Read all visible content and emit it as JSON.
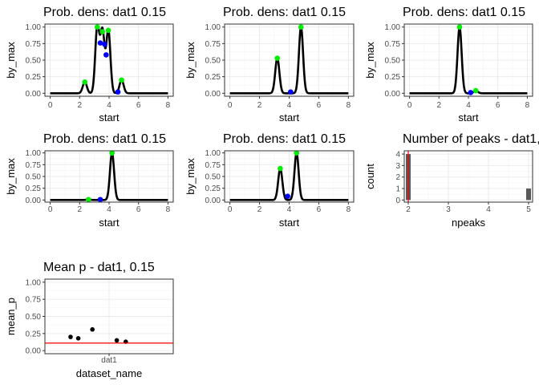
{
  "colors": {
    "panel_border": "#333333",
    "grid_major": "#ebebeb",
    "grid_minor": "#f4f4f4",
    "curve": "#000000",
    "peak_green": "#00ee00",
    "valley_blue": "#0000ff",
    "ref_line": "#ff0000",
    "bar": "#595959"
  },
  "chart_data": [
    {
      "type": "line",
      "title": "Prob. dens: dat1 0.15",
      "xlabel": "start",
      "ylabel": "by_max",
      "xlim": [
        0,
        8
      ],
      "ylim": [
        0,
        1
      ],
      "xticks": [
        "0",
        "2",
        "4",
        "6",
        "8"
      ],
      "yticks": [
        "0.00",
        "0.25",
        "0.50",
        "0.75",
        "1.00"
      ],
      "grid": true,
      "peaks": [
        {
          "x": 2.35,
          "y": 0.17
        },
        {
          "x": 3.2,
          "y": 1.0
        },
        {
          "x": 3.55,
          "y": 0.93
        },
        {
          "x": 3.95,
          "y": 0.95
        },
        {
          "x": 4.85,
          "y": 0.2
        }
      ],
      "valleys": [
        {
          "x": 3.4,
          "y": 0.76
        },
        {
          "x": 3.7,
          "y": 0.74
        },
        {
          "x": 3.8,
          "y": 0.58
        },
        {
          "x": 4.6,
          "y": 0.02
        }
      ]
    },
    {
      "type": "line",
      "title": "Prob. dens: dat1 0.15",
      "xlabel": "start",
      "ylabel": "by_max",
      "xlim": [
        0,
        8
      ],
      "ylim": [
        0,
        1
      ],
      "xticks": [
        "0",
        "2",
        "4",
        "6",
        "8"
      ],
      "yticks": [
        "0.00",
        "0.25",
        "0.50",
        "0.75",
        "1.00"
      ],
      "grid": true,
      "peaks": [
        {
          "x": 3.2,
          "y": 0.53
        },
        {
          "x": 4.8,
          "y": 1.0
        }
      ],
      "valleys": [
        {
          "x": 4.1,
          "y": 0.02
        }
      ]
    },
    {
      "type": "line",
      "title": "Prob. dens: dat1 0.15",
      "xlabel": "start",
      "ylabel": "by_max",
      "xlim": [
        0,
        8
      ],
      "ylim": [
        0,
        1
      ],
      "xticks": [
        "0",
        "2",
        "4",
        "6",
        "8"
      ],
      "yticks": [
        "0.00",
        "0.25",
        "0.50",
        "0.75",
        "1.00"
      ],
      "grid": true,
      "peaks": [
        {
          "x": 3.4,
          "y": 1.0
        },
        {
          "x": 4.5,
          "y": 0.04
        }
      ],
      "valleys": [
        {
          "x": 4.15,
          "y": 0.01
        }
      ]
    },
    {
      "type": "line",
      "title": "Prob. dens: dat1 0.15",
      "xlabel": "start",
      "ylabel": "by_max",
      "xlim": [
        0,
        8
      ],
      "ylim": [
        0,
        1
      ],
      "xticks": [
        "0",
        "2",
        "4",
        "6",
        "8"
      ],
      "yticks": [
        "0.00",
        "0.25",
        "0.50",
        "0.75",
        "1.00"
      ],
      "grid": true,
      "peaks": [
        {
          "x": 2.6,
          "y": 0.01
        },
        {
          "x": 4.2,
          "y": 1.0
        }
      ],
      "valleys": [
        {
          "x": 3.4,
          "y": 0.01
        }
      ]
    },
    {
      "type": "line",
      "title": "Prob. dens: dat1 0.15",
      "xlabel": "start",
      "ylabel": "by_max",
      "xlim": [
        0,
        8
      ],
      "ylim": [
        0,
        1
      ],
      "xticks": [
        "0",
        "2",
        "4",
        "6",
        "8"
      ],
      "yticks": [
        "0.00",
        "0.25",
        "0.50",
        "0.75",
        "1.00"
      ],
      "grid": true,
      "peaks": [
        {
          "x": 3.4,
          "y": 0.67
        },
        {
          "x": 4.5,
          "y": 1.0
        }
      ],
      "valleys": [
        {
          "x": 3.9,
          "y": 0.08
        }
      ]
    },
    {
      "type": "bar",
      "title": "Number of peaks - dat1,",
      "xlabel": "npeaks",
      "ylabel": "count",
      "xlim": [
        1.9,
        5.1
      ],
      "ylim": [
        0,
        4.1
      ],
      "xticks": [
        "2",
        "3",
        "4",
        "5"
      ],
      "yticks": [
        "0",
        "1",
        "2",
        "3",
        "4"
      ],
      "grid": true,
      "bars": [
        {
          "x": 2,
          "count": 4
        },
        {
          "x": 5,
          "count": 1
        }
      ],
      "vline": 2
    },
    {
      "type": "scatter",
      "title": "Mean p - dat1, 0.15",
      "xlabel": "dataset_name",
      "ylabel": "mean_p",
      "categories": [
        "dat1"
      ],
      "ylim": [
        0,
        1
      ],
      "yticks": [
        "0.00",
        "0.25",
        "0.50",
        "0.75",
        "1.00"
      ],
      "grid": true,
      "points": [
        {
          "jitter": -0.3,
          "y": 0.2
        },
        {
          "jitter": -0.24,
          "y": 0.18
        },
        {
          "jitter": -0.13,
          "y": 0.31
        },
        {
          "jitter": 0.06,
          "y": 0.15
        },
        {
          "jitter": 0.13,
          "y": 0.13
        }
      ],
      "hline": 0.11
    }
  ]
}
